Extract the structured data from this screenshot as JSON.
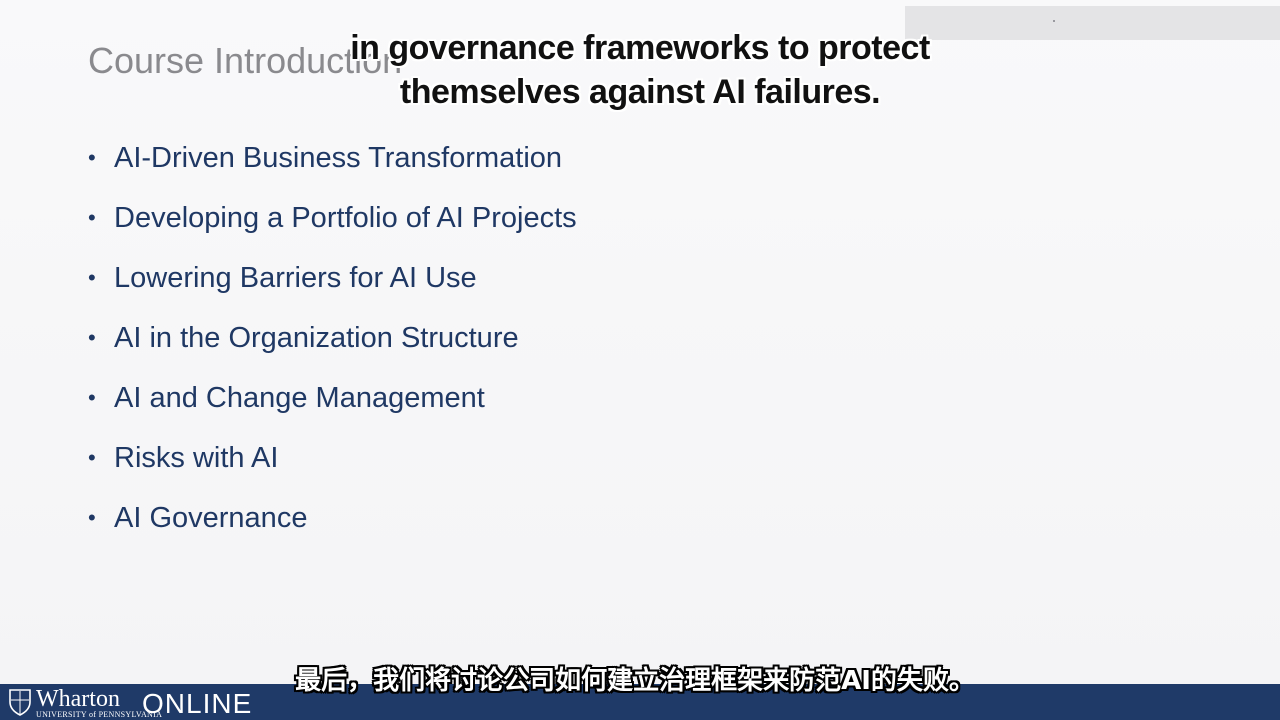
{
  "slide": {
    "title": "Course Introduction",
    "bullets": [
      "AI-Driven Business Transformation",
      "Developing a Portfolio of AI Projects",
      "Lowering Barriers for AI Use",
      "AI in the Organization Structure",
      "AI and Change Management",
      "Risks with AI",
      "AI Governance"
    ],
    "bullet_symbol": "•"
  },
  "captions": {
    "english_line1": "in governance frameworks to protect",
    "english_line2": "themselves against AI failures.",
    "chinese": "最后，我们将讨论公司如何建立治理框架来防范AI的失败。"
  },
  "branding": {
    "wordmark": "Wharton",
    "subline": "UNIVERSITY of PENNSYLVANIA",
    "product": "ONLINE",
    "bar_color": "#1f3a68",
    "icon": "shield-icon"
  },
  "colors": {
    "title": "#8a8a8e",
    "bullets": "#1f3864",
    "background": "#f7f7f8"
  }
}
